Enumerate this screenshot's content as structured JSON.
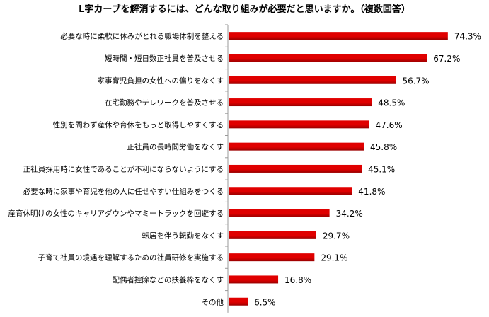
{
  "chart_data": {
    "type": "bar",
    "orientation": "horizontal",
    "title": "L字カーブを解消するには、どんな取り組みが必要だと思いますか。（複数回答）",
    "categories": [
      "必要な時に柔軟に休みがとれる職場体制を整える",
      "短時間・短日数正社員を普及させる",
      "家事育児負担の女性への偏りをなくす",
      "在宅勤務やテレワークを普及させる",
      "性別を問わず産休や育休をもっと取得しやすくする",
      "正社員の長時間労働をなくす",
      "正社員採用時に女性であることが不利にならないようにする",
      "必要な時に家事や育児を他の人に任せやすい仕組みをつくる",
      "産育休明けの女性のキャリアダウンやマミートラックを回避する",
      "転居を伴う転勤をなくす",
      "子育て社員の境遇を理解するための社員研修を実施する",
      "配偶者控除などの扶養枠をなくす",
      "その他"
    ],
    "values": [
      74.3,
      67.2,
      56.7,
      48.5,
      47.6,
      45.8,
      45.1,
      41.8,
      34.2,
      29.7,
      29.1,
      16.8,
      6.5
    ],
    "value_labels": [
      "74.3%",
      "67.2%",
      "56.7%",
      "48.5%",
      "47.6%",
      "45.8%",
      "45.1%",
      "41.8%",
      "34.2%",
      "29.7%",
      "29.1%",
      "16.8%",
      "6.5%"
    ],
    "xlim": [
      0,
      100
    ],
    "grid": false,
    "legend": "none",
    "bar_color": "#e00000",
    "bar_color_dark": "#9a0000",
    "axis_color": "#999999"
  }
}
